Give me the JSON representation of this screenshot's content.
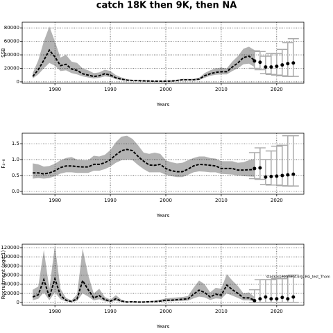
{
  "title": "catch 18K then 9K, then NA",
  "chart_data": [
    {
      "type": "line",
      "ylabel": "SSB",
      "xlabel": "Years",
      "xlim": [
        1974.1,
        2024.9
      ],
      "xticks": [
        1980,
        1990,
        2000,
        2010,
        2020
      ],
      "ylim": [
        -2100,
        88400
      ],
      "yticks": [
        0,
        20000,
        40000,
        60000,
        80000
      ],
      "grid": true,
      "color": "#000000",
      "band_color": "#b3b3b3",
      "forecast_color": "#aaaaaa",
      "x": [
        1976,
        1977,
        1978,
        1979,
        1980,
        1981,
        1982,
        1983,
        1984,
        1985,
        1986,
        1987,
        1988,
        1989,
        1990,
        1991,
        1992,
        1993,
        1994,
        1995,
        1996,
        1997,
        1998,
        1999,
        2000,
        2001,
        2002,
        2003,
        2004,
        2005,
        2006,
        2007,
        2008,
        2009,
        2010,
        2011,
        2012,
        2013,
        2014,
        2015,
        2016
      ],
      "values": [
        8000,
        18000,
        32000,
        47000,
        37000,
        24000,
        26000,
        19000,
        17000,
        12000,
        10000,
        8000,
        9000,
        12000,
        10000,
        6000,
        4000,
        2500,
        2000,
        1800,
        1500,
        1200,
        1000,
        1000,
        1000,
        1200,
        2000,
        3000,
        3000,
        3000,
        4000,
        9000,
        12000,
        14000,
        15000,
        15000,
        22000,
        28000,
        36000,
        38000,
        32000
      ],
      "low": [
        5000,
        11000,
        20000,
        28000,
        24000,
        16000,
        17000,
        13000,
        11000,
        8000,
        6500,
        5000,
        6000,
        8000,
        7000,
        4000,
        2500,
        1600,
        1300,
        1200,
        1000,
        800,
        650,
        650,
        650,
        800,
        1300,
        2000,
        2000,
        2000,
        2700,
        6000,
        9000,
        10500,
        11000,
        11000,
        16000,
        20000,
        26000,
        27000,
        22000
      ],
      "high": [
        13000,
        32000,
        60000,
        82000,
        60000,
        36000,
        40000,
        30000,
        28000,
        20000,
        17000,
        13000,
        14000,
        18000,
        16000,
        10000,
        6500,
        4000,
        3000,
        2800,
        2300,
        1800,
        1600,
        1600,
        1600,
        1900,
        3000,
        4500,
        4500,
        4500,
        6000,
        13000,
        17000,
        20000,
        21000,
        20000,
        30000,
        38000,
        49000,
        52000,
        47000
      ],
      "forecast": {
        "x": [
          2016,
          2017,
          2018,
          2019,
          2020,
          2021,
          2022,
          2023
        ],
        "values": [
          31000,
          29000,
          22000,
          22000,
          23000,
          25000,
          27000,
          28000
        ],
        "low": [
          20000,
          18000,
          12000,
          11000,
          10000,
          9000,
          8000,
          8000
        ],
        "high": [
          46000,
          45000,
          38000,
          42000,
          42000,
          48000,
          58000,
          64000
        ]
      }
    },
    {
      "type": "line",
      "ylabel": "F₄₋₈",
      "xlabel": "Years",
      "xlim": [
        1974.1,
        2024.9
      ],
      "xticks": [
        1980,
        1990,
        2000,
        2010,
        2020
      ],
      "ylim": [
        -0.09,
        1.83
      ],
      "yticks": [
        {
          "value": 0,
          "label": "0.0"
        },
        0.5,
        {
          "value": 1,
          "label": "1.0"
        },
        1.5
      ],
      "grid": true,
      "color": "#000000",
      "band_color": "#b3b3b3",
      "forecast_color": "#aaaaaa",
      "x": [
        1976,
        1977,
        1978,
        1979,
        1980,
        1981,
        1982,
        1983,
        1984,
        1985,
        1986,
        1987,
        1988,
        1989,
        1990,
        1991,
        1992,
        1993,
        1994,
        1995,
        1996,
        1997,
        1998,
        1999,
        2000,
        2001,
        2002,
        2003,
        2004,
        2005,
        2006,
        2007,
        2008,
        2009,
        2010,
        2011,
        2012,
        2013,
        2014,
        2015,
        2016
      ],
      "values": [
        0.58,
        0.58,
        0.55,
        0.58,
        0.65,
        0.75,
        0.8,
        0.8,
        0.78,
        0.77,
        0.77,
        0.85,
        0.85,
        0.9,
        1.0,
        1.15,
        1.28,
        1.32,
        1.28,
        1.1,
        0.95,
        0.83,
        0.82,
        0.85,
        0.72,
        0.65,
        0.62,
        0.62,
        0.7,
        0.8,
        0.85,
        0.84,
        0.82,
        0.8,
        0.72,
        0.72,
        0.72,
        0.67,
        0.67,
        0.68,
        0.69
      ],
      "low": [
        0.4,
        0.42,
        0.4,
        0.42,
        0.48,
        0.56,
        0.6,
        0.6,
        0.58,
        0.58,
        0.58,
        0.65,
        0.65,
        0.7,
        0.78,
        0.9,
        0.98,
        1.0,
        0.98,
        0.83,
        0.7,
        0.6,
        0.6,
        0.6,
        0.52,
        0.48,
        0.45,
        0.45,
        0.52,
        0.6,
        0.63,
        0.62,
        0.6,
        0.6,
        0.55,
        0.54,
        0.53,
        0.5,
        0.48,
        0.47,
        0.46
      ],
      "high": [
        0.88,
        0.85,
        0.78,
        0.8,
        0.87,
        0.98,
        1.05,
        1.08,
        1.0,
        0.98,
        0.98,
        1.12,
        1.1,
        1.15,
        1.3,
        1.55,
        1.72,
        1.75,
        1.65,
        1.45,
        1.22,
        1.18,
        1.22,
        1.18,
        0.98,
        0.92,
        0.88,
        0.9,
        0.98,
        1.05,
        1.1,
        1.1,
        1.05,
        1.03,
        0.95,
        0.95,
        0.95,
        0.9,
        0.92,
        0.98,
        1.02
      ],
      "forecast": {
        "x": [
          2016,
          2017,
          2018,
          2019,
          2020,
          2021,
          2022,
          2023
        ],
        "values": [
          0.72,
          0.74,
          0.45,
          0.47,
          0.48,
          0.5,
          0.52,
          0.54
        ],
        "low": [
          0.4,
          0.38,
          0.22,
          0.2,
          0.2,
          0.18,
          0.17,
          0.17
        ],
        "high": [
          1.22,
          1.37,
          1.0,
          1.27,
          1.42,
          1.45,
          1.75,
          1.75
        ]
      }
    },
    {
      "type": "line",
      "ylabel": "Recruitment (age 1)",
      "xlabel": "Years",
      "annotation": "stockassessment.org, RG_test_Thom",
      "xlim": [
        1974.1,
        2024.9
      ],
      "xticks": [
        1980,
        1990,
        2000,
        2010,
        2020
      ],
      "ylim": [
        -6080,
        127600
      ],
      "yticks": [
        0,
        20000,
        40000,
        60000,
        80000,
        100000,
        120000
      ],
      "grid": true,
      "color": "#000000",
      "band_color": "#b3b3b3",
      "forecast_color": "#aaaaaa",
      "x": [
        1976,
        1977,
        1978,
        1979,
        1980,
        1981,
        1982,
        1983,
        1984,
        1985,
        1986,
        1987,
        1988,
        1989,
        1990,
        1991,
        1992,
        1993,
        1994,
        1995,
        1996,
        1997,
        1998,
        1999,
        2000,
        2001,
        2002,
        2003,
        2004,
        2005,
        2006,
        2007,
        2008,
        2009,
        2010,
        2011,
        2012,
        2013,
        2014,
        2015,
        2016
      ],
      "values": [
        12000,
        17000,
        50000,
        12000,
        52000,
        15000,
        5000,
        2000,
        8000,
        48000,
        28000,
        10000,
        15000,
        6000,
        3000,
        8000,
        3000,
        1000,
        1500,
        1000,
        1000,
        1500,
        2000,
        3000,
        5000,
        5000,
        6000,
        7000,
        8000,
        18000,
        27000,
        22000,
        12000,
        18000,
        16000,
        38000,
        28000,
        20000,
        10000,
        10000,
        5000
      ],
      "low": [
        5000,
        8000,
        22000,
        5000,
        22000,
        7000,
        2200,
        800,
        3500,
        20000,
        13000,
        4500,
        7000,
        2500,
        1200,
        3500,
        1200,
        400,
        600,
        450,
        450,
        700,
        900,
        1400,
        2500,
        2500,
        3000,
        3500,
        4000,
        9000,
        13000,
        11000,
        5500,
        9000,
        8000,
        20000,
        15000,
        10000,
        4500,
        4500,
        2000
      ],
      "high": [
        28000,
        35000,
        115000,
        30000,
        125000,
        30000,
        10000,
        4500,
        18000,
        118000,
        60000,
        20000,
        30000,
        12000,
        6500,
        16000,
        6000,
        2500,
        3000,
        2200,
        2200,
        3200,
        4000,
        6000,
        9000,
        10000,
        11000,
        12000,
        14000,
        32000,
        48000,
        40000,
        22000,
        32000,
        30000,
        62000,
        48000,
        36000,
        20000,
        22000,
        12000
      ],
      "forecast": {
        "x": [
          2016,
          2017,
          2018,
          2019,
          2020,
          2021,
          2022,
          2023
        ],
        "values": [
          4000,
          8000,
          12000,
          8000,
          8000,
          11000,
          8000,
          12000
        ],
        "low": [
          300,
          300,
          300,
          300,
          300,
          300,
          300,
          300
        ],
        "high": [
          28000,
          50000,
          50000,
          50000,
          52000,
          52000,
          58000,
          60000
        ]
      }
    }
  ]
}
